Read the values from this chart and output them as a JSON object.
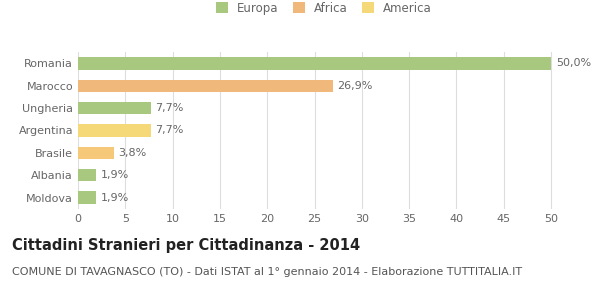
{
  "categories": [
    "Moldova",
    "Albania",
    "Brasile",
    "Argentina",
    "Ungheria",
    "Marocco",
    "Romania"
  ],
  "values": [
    1.9,
    1.9,
    3.8,
    7.7,
    7.7,
    26.9,
    50.0
  ],
  "labels": [
    "1,9%",
    "1,9%",
    "3,8%",
    "7,7%",
    "7,7%",
    "26,9%",
    "50,0%"
  ],
  "colors": [
    "#a8c880",
    "#a8c880",
    "#f5c87a",
    "#f5d878",
    "#a8c880",
    "#f0b87a",
    "#a8c880"
  ],
  "legend_labels": [
    "Europa",
    "Africa",
    "America"
  ],
  "legend_colors": [
    "#a8c880",
    "#f0b87a",
    "#f5d878"
  ],
  "title": "Cittadini Stranieri per Cittadinanza - 2014",
  "subtitle": "COMUNE DI TAVAGNASCO (TO) - Dati ISTAT al 1° gennaio 2014 - Elaborazione TUTTITALIA.IT",
  "xlim": [
    0,
    52
  ],
  "xticks": [
    0,
    5,
    10,
    15,
    20,
    25,
    30,
    35,
    40,
    45,
    50
  ],
  "bar_height": 0.55,
  "background_color": "#ffffff",
  "grid_color": "#dddddd",
  "title_fontsize": 10.5,
  "subtitle_fontsize": 8,
  "label_fontsize": 8,
  "tick_fontsize": 8,
  "legend_fontsize": 8.5,
  "yticklabel_color": "#666666",
  "text_color": "#444444"
}
